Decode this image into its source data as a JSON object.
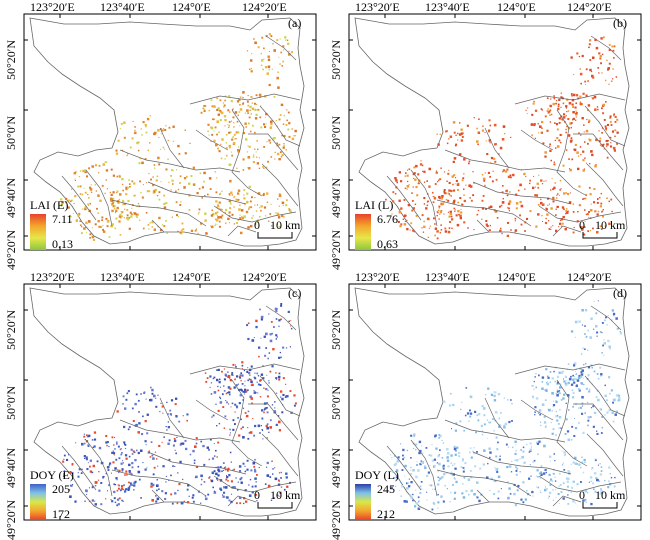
{
  "axis": {
    "lat_labels": [
      "50°20′N",
      "50°0′N",
      "49°40′N",
      "49°20′N"
    ],
    "lon_labels": [
      "123°20′E",
      "123°40′E",
      "124°0′E",
      "124°20′E"
    ]
  },
  "scale_bar": {
    "zero": "0",
    "distance": "10 km"
  },
  "panels": [
    {
      "id": "a",
      "label": "(a)",
      "legend_title": "LAI (E)",
      "legend_max": "7.11",
      "legend_min": "0.13",
      "ramp": [
        "#e8412a",
        "#f3a62d",
        "#e8e64a",
        "#8cc63f"
      ],
      "dots": [
        "#e38a2b",
        "#efb53a",
        "#c9d64a",
        "#d9772a"
      ]
    },
    {
      "id": "b",
      "label": "(b)",
      "legend_title": "LAI (L)",
      "legend_max": "6.76",
      "legend_min": "0.63",
      "ramp": [
        "#e8412a",
        "#f3a62d",
        "#e8e64a",
        "#8cc63f"
      ],
      "dots": [
        "#e8602a",
        "#e84a2a",
        "#f09a30",
        "#d94a26"
      ]
    },
    {
      "id": "c",
      "label": "(c)",
      "legend_title": "DOY (E)",
      "legend_max": "205",
      "legend_min": "172",
      "ramp": [
        "#3e62c8",
        "#7fc1e8",
        "#d9e84a",
        "#f3a62d",
        "#e8412a"
      ],
      "dots": [
        "#4060c0",
        "#e84a2a",
        "#6a78d0",
        "#3a50b0"
      ]
    },
    {
      "id": "d",
      "label": "(d)",
      "legend_title": "DOY (L)",
      "legend_max": "245",
      "legend_min": "212",
      "ramp": [
        "#2c3fa8",
        "#7fc1e8",
        "#d9e84a",
        "#f3a62d",
        "#e8412a"
      ],
      "dots": [
        "#9fd0ee",
        "#7fb9e4",
        "#4a6ac8",
        "#b9dcf2"
      ]
    }
  ]
}
